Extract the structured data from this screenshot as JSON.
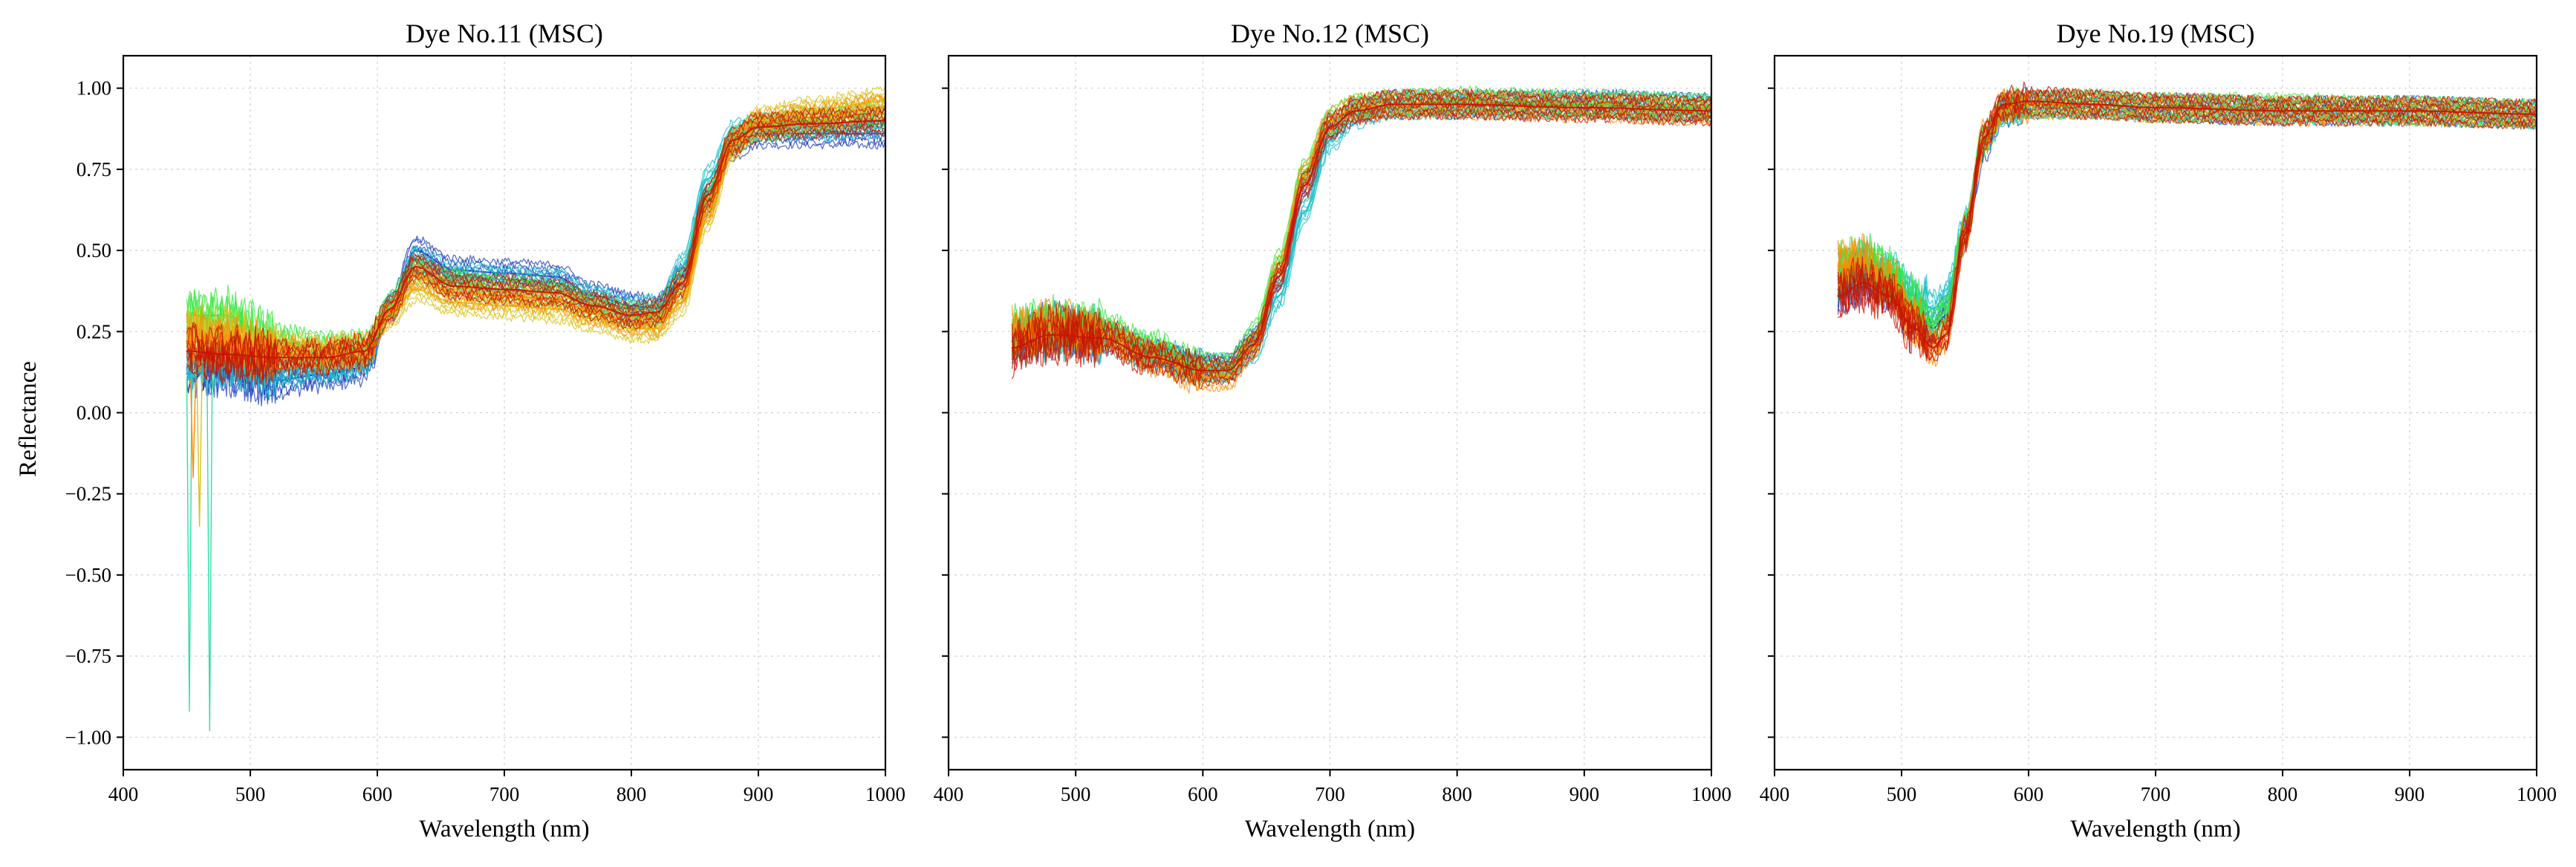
{
  "figure": {
    "ylabel": "Reflectance"
  },
  "chart_data": [
    {
      "type": "line",
      "title": "Dye  No.11 (MSC)",
      "xlabel": "Wavelength  (nm)",
      "ylabel": "Reflectance",
      "xlim": [
        400,
        1000
      ],
      "ylim": [
        -1.1,
        1.1
      ],
      "xticks": [
        400,
        500,
        600,
        700,
        800,
        900,
        1000
      ],
      "xtick_labels": [
        "400",
        "500",
        "600",
        "700",
        "800",
        "900",
        "1000"
      ],
      "yticks": [
        -1.0,
        -0.75,
        -0.5,
        -0.25,
        0.0,
        0.25,
        0.5,
        0.75,
        1.0
      ],
      "ytick_labels": [
        "−1.00",
        "−0.75",
        "−0.50",
        "−0.25",
        "0.00",
        "0.25",
        "0.50",
        "0.75",
        "1.00"
      ],
      "grid": true,
      "show_yticklabels": true,
      "series": [
        {
          "name": "spectra (blue/cyan group)",
          "color": "#1f3fbf",
          "x": [
            450,
            480,
            520,
            560,
            590,
            610,
            630,
            660,
            700,
            740,
            770,
            800,
            820,
            840,
            860,
            880,
            900,
            940,
            1000
          ],
          "y": [
            0.12,
            0.13,
            0.1,
            0.12,
            0.14,
            0.32,
            0.5,
            0.44,
            0.43,
            0.42,
            0.36,
            0.33,
            0.32,
            0.42,
            0.65,
            0.82,
            0.86,
            0.86,
            0.86
          ]
        },
        {
          "name": "spectra (cyan group)",
          "color": "#17bfc9",
          "x": [
            450,
            480,
            520,
            560,
            590,
            610,
            630,
            660,
            700,
            740,
            770,
            800,
            820,
            840,
            860,
            880,
            900,
            940,
            1000
          ],
          "y": [
            0.15,
            0.16,
            0.13,
            0.14,
            0.16,
            0.33,
            0.47,
            0.42,
            0.41,
            0.4,
            0.35,
            0.32,
            0.32,
            0.45,
            0.72,
            0.86,
            0.88,
            0.88,
            0.89
          ]
        },
        {
          "name": "spectra (green group)",
          "color": "#39e83f",
          "x": [
            450,
            480,
            520,
            560,
            590,
            610,
            630,
            660,
            700,
            740,
            770,
            800,
            820,
            840,
            860,
            880,
            900,
            940,
            1000
          ],
          "y": [
            0.3,
            0.3,
            0.22,
            0.2,
            0.2,
            0.33,
            0.44,
            0.4,
            0.38,
            0.37,
            0.33,
            0.3,
            0.3,
            0.4,
            0.66,
            0.84,
            0.88,
            0.9,
            0.92
          ]
        },
        {
          "name": "spectra (yellow group)",
          "color": "#d8c21a",
          "x": [
            450,
            480,
            520,
            560,
            590,
            610,
            630,
            660,
            700,
            740,
            770,
            800,
            820,
            840,
            860,
            880,
            900,
            940,
            1000
          ],
          "y": [
            0.25,
            0.24,
            0.2,
            0.19,
            0.19,
            0.3,
            0.38,
            0.34,
            0.33,
            0.32,
            0.29,
            0.26,
            0.26,
            0.34,
            0.6,
            0.82,
            0.9,
            0.93,
            0.96
          ]
        },
        {
          "name": "spectra (orange group)",
          "color": "#ff8c00",
          "x": [
            450,
            480,
            520,
            560,
            590,
            610,
            630,
            660,
            700,
            740,
            770,
            800,
            820,
            840,
            860,
            880,
            900,
            940,
            1000
          ],
          "y": [
            0.22,
            0.21,
            0.18,
            0.18,
            0.19,
            0.31,
            0.42,
            0.37,
            0.36,
            0.35,
            0.31,
            0.28,
            0.28,
            0.37,
            0.63,
            0.83,
            0.89,
            0.91,
            0.94
          ]
        },
        {
          "name": "spectra (red group)",
          "color": "#c81400",
          "x": [
            450,
            480,
            520,
            560,
            590,
            610,
            630,
            660,
            700,
            740,
            770,
            800,
            820,
            840,
            860,
            880,
            900,
            940,
            1000
          ],
          "y": [
            0.19,
            0.18,
            0.17,
            0.17,
            0.19,
            0.32,
            0.45,
            0.39,
            0.38,
            0.37,
            0.33,
            0.3,
            0.31,
            0.4,
            0.67,
            0.84,
            0.88,
            0.89,
            0.9
          ]
        }
      ]
    },
    {
      "type": "line",
      "title": "Dye  No.12 (MSC)",
      "xlabel": "Wavelength  (nm)",
      "ylabel": "",
      "xlim": [
        400,
        1000
      ],
      "ylim": [
        -1.1,
        1.1
      ],
      "xticks": [
        400,
        500,
        600,
        700,
        800,
        900,
        1000
      ],
      "xtick_labels": [
        "400",
        "500",
        "600",
        "700",
        "800",
        "900",
        "1000"
      ],
      "yticks": [
        -1.0,
        -0.75,
        -0.5,
        -0.25,
        0.0,
        0.25,
        0.5,
        0.75,
        1.0
      ],
      "ytick_labels": [],
      "grid": true,
      "show_yticklabels": false,
      "series": [
        {
          "name": "spectra (blue group)",
          "color": "#1f3fbf",
          "x": [
            450,
            480,
            520,
            560,
            600,
            620,
            640,
            660,
            680,
            700,
            720,
            750,
            800,
            900,
            1000
          ],
          "y": [
            0.22,
            0.25,
            0.24,
            0.18,
            0.14,
            0.14,
            0.22,
            0.42,
            0.7,
            0.88,
            0.93,
            0.95,
            0.95,
            0.95,
            0.94
          ]
        },
        {
          "name": "spectra (cyan group)",
          "color": "#17bfc9",
          "x": [
            450,
            480,
            520,
            560,
            600,
            620,
            640,
            660,
            680,
            700,
            720,
            750,
            800,
            900,
            1000
          ],
          "y": [
            0.22,
            0.25,
            0.24,
            0.18,
            0.14,
            0.14,
            0.19,
            0.36,
            0.62,
            0.84,
            0.92,
            0.95,
            0.95,
            0.95,
            0.94
          ]
        },
        {
          "name": "spectra (green group)",
          "color": "#39e83f",
          "x": [
            450,
            480,
            520,
            560,
            600,
            620,
            640,
            660,
            680,
            700,
            720,
            750,
            800,
            900,
            1000
          ],
          "y": [
            0.25,
            0.27,
            0.26,
            0.2,
            0.14,
            0.14,
            0.24,
            0.46,
            0.74,
            0.9,
            0.94,
            0.95,
            0.96,
            0.95,
            0.94
          ]
        },
        {
          "name": "spectra (orange group)",
          "color": "#ff8c00",
          "x": [
            450,
            480,
            520,
            560,
            600,
            620,
            640,
            660,
            680,
            700,
            720,
            750,
            800,
            900,
            1000
          ],
          "y": [
            0.24,
            0.26,
            0.24,
            0.17,
            0.11,
            0.11,
            0.2,
            0.44,
            0.73,
            0.9,
            0.94,
            0.95,
            0.95,
            0.94,
            0.93
          ]
        },
        {
          "name": "spectra (red group)",
          "color": "#c81400",
          "x": [
            450,
            480,
            520,
            560,
            600,
            620,
            640,
            660,
            680,
            700,
            720,
            750,
            800,
            900,
            1000
          ],
          "y": [
            0.2,
            0.24,
            0.23,
            0.17,
            0.13,
            0.13,
            0.21,
            0.42,
            0.7,
            0.88,
            0.93,
            0.95,
            0.95,
            0.94,
            0.93
          ]
        }
      ]
    },
    {
      "type": "line",
      "title": "Dye  No.19 (MSC)",
      "xlabel": "Wavelength  (nm)",
      "ylabel": "",
      "xlim": [
        400,
        1000
      ],
      "ylim": [
        -1.1,
        1.1
      ],
      "xticks": [
        400,
        500,
        600,
        700,
        800,
        900,
        1000
      ],
      "xtick_labels": [
        "400",
        "500",
        "600",
        "700",
        "800",
        "900",
        "1000"
      ],
      "yticks": [
        -1.0,
        -0.75,
        -0.5,
        -0.25,
        0.0,
        0.25,
        0.5,
        0.75,
        1.0
      ],
      "ytick_labels": [],
      "grid": true,
      "show_yticklabels": false,
      "series": [
        {
          "name": "spectra (blue group)",
          "color": "#1f3fbf",
          "x": [
            450,
            470,
            490,
            510,
            525,
            535,
            550,
            565,
            580,
            600,
            650,
            700,
            800,
            900,
            1000
          ],
          "y": [
            0.38,
            0.42,
            0.38,
            0.3,
            0.26,
            0.3,
            0.55,
            0.82,
            0.93,
            0.95,
            0.95,
            0.94,
            0.93,
            0.93,
            0.92
          ]
        },
        {
          "name": "spectra (cyan group)",
          "color": "#17bfc9",
          "x": [
            450,
            470,
            490,
            510,
            525,
            535,
            550,
            565,
            580,
            600,
            650,
            700,
            800,
            900,
            1000
          ],
          "y": [
            0.42,
            0.45,
            0.42,
            0.36,
            0.32,
            0.36,
            0.58,
            0.84,
            0.93,
            0.95,
            0.95,
            0.94,
            0.93,
            0.93,
            0.92
          ]
        },
        {
          "name": "spectra (green group)",
          "color": "#39e83f",
          "x": [
            450,
            470,
            490,
            510,
            525,
            535,
            550,
            565,
            580,
            600,
            650,
            700,
            800,
            900,
            1000
          ],
          "y": [
            0.44,
            0.47,
            0.43,
            0.33,
            0.27,
            0.31,
            0.57,
            0.84,
            0.94,
            0.95,
            0.95,
            0.94,
            0.94,
            0.93,
            0.92
          ]
        },
        {
          "name": "spectra (orange group)",
          "color": "#ff8c00",
          "x": [
            450,
            470,
            490,
            510,
            525,
            535,
            550,
            565,
            580,
            600,
            650,
            700,
            800,
            900,
            1000
          ],
          "y": [
            0.45,
            0.46,
            0.4,
            0.28,
            0.2,
            0.24,
            0.55,
            0.85,
            0.94,
            0.95,
            0.95,
            0.94,
            0.93,
            0.93,
            0.92
          ]
        },
        {
          "name": "spectra (red group)",
          "color": "#c81400",
          "x": [
            450,
            470,
            490,
            510,
            525,
            535,
            550,
            565,
            580,
            600,
            650,
            700,
            800,
            900,
            1000
          ],
          "y": [
            0.36,
            0.4,
            0.36,
            0.26,
            0.2,
            0.24,
            0.55,
            0.85,
            0.95,
            0.96,
            0.95,
            0.94,
            0.93,
            0.93,
            0.92
          ]
        }
      ]
    }
  ]
}
